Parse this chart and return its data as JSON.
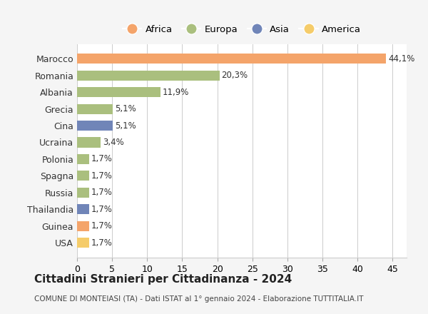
{
  "categories": [
    "Marocco",
    "Romania",
    "Albania",
    "Grecia",
    "Cina",
    "Ucraina",
    "Polonia",
    "Spagna",
    "Russia",
    "Thailandia",
    "Guinea",
    "USA"
  ],
  "values": [
    44.1,
    20.3,
    11.9,
    5.1,
    5.1,
    3.4,
    1.7,
    1.7,
    1.7,
    1.7,
    1.7,
    1.7
  ],
  "labels": [
    "44,1%",
    "20,3%",
    "11,9%",
    "5,1%",
    "5,1%",
    "3,4%",
    "1,7%",
    "1,7%",
    "1,7%",
    "1,7%",
    "1,7%",
    "1,7%"
  ],
  "colors": [
    "#F4A46A",
    "#AABF7E",
    "#AABF7E",
    "#AABF7E",
    "#7085B8",
    "#AABF7E",
    "#AABF7E",
    "#AABF7E",
    "#AABF7E",
    "#7085B8",
    "#F4A46A",
    "#F5CC6A"
  ],
  "legend_labels": [
    "Africa",
    "Europa",
    "Asia",
    "America"
  ],
  "legend_colors": [
    "#F4A46A",
    "#AABF7E",
    "#7085B8",
    "#F5CC6A"
  ],
  "xlim": [
    0,
    47
  ],
  "xticks": [
    0,
    5,
    10,
    15,
    20,
    25,
    30,
    35,
    40,
    45
  ],
  "title": "Cittadini Stranieri per Cittadinanza - 2024",
  "subtitle": "COMUNE DI MONTEIASI (TA) - Dati ISTAT al 1° gennaio 2024 - Elaborazione TUTTITALIA.IT",
  "background_color": "#f5f5f5",
  "bar_background_color": "#ffffff",
  "grid_color": "#cccccc"
}
